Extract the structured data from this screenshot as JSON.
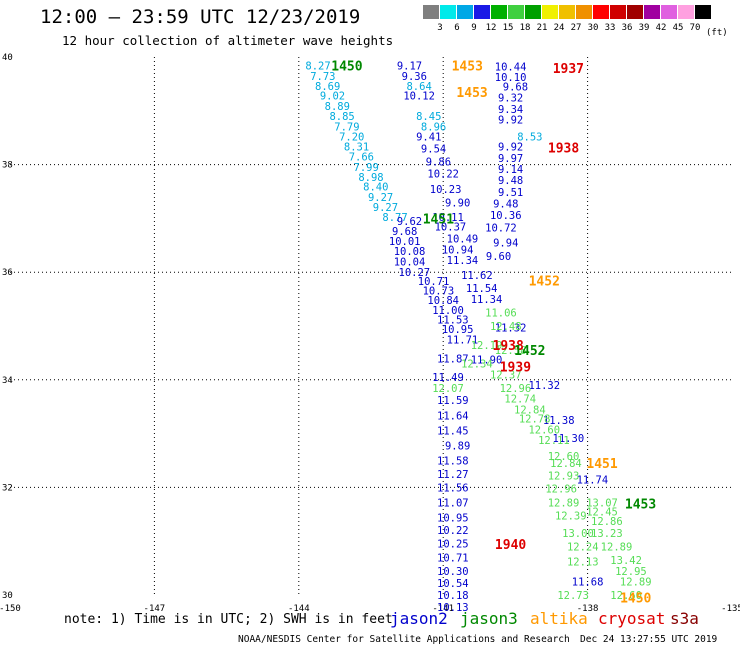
{
  "title": "12:00 — 23:59 UTC 12/23/2019",
  "subtitle": "12 hour collection of altimeter wave heights",
  "colorbar": {
    "colors": [
      "#7f7f7f",
      "#00eaea",
      "#00a8e6",
      "#1a1ae6",
      "#00b000",
      "#40d040",
      "#00a000",
      "#f0f000",
      "#f0c000",
      "#f09000",
      "#ff0000",
      "#d00000",
      "#a00000",
      "#a000a0",
      "#e060e0",
      "#ffa0e0",
      "#000000"
    ],
    "labels": [
      "3",
      "6",
      "9",
      "12",
      "15",
      "18",
      "21",
      "24",
      "27",
      "30",
      "33",
      "36",
      "39",
      "42",
      "45",
      "70"
    ],
    "unit": "(ft)"
  },
  "note": "note: 1) Time is in UTC; 2) SWH is in feet",
  "legend": [
    {
      "name": "jason2",
      "color": "#0000cc"
    },
    {
      "name": "jason3",
      "color": "#008800"
    },
    {
      "name": "altika",
      "color": "#ff9900"
    },
    {
      "name": "cryosat",
      "color": "#dd0000"
    },
    {
      "name": "s3a",
      "color": "#880000"
    }
  ],
  "footer_left": "NOAA/NESDIS Center for Satellite Applications and Research",
  "footer_right": "Dec 24 13:27:55 UTC 2019",
  "chart_data": {
    "type": "scatter",
    "xlim": [
      -150,
      -135
    ],
    "ylim": [
      30,
      40
    ],
    "xticks": [
      "-150",
      "-147",
      "-144",
      "-141",
      "-138",
      "-135"
    ],
    "yticks": [
      "40",
      "38",
      "36",
      "34",
      "32",
      "30"
    ],
    "xtick_values": [
      -150,
      -147,
      -144,
      -141,
      -138,
      -135
    ],
    "ytick_values": [
      40,
      38,
      36,
      34,
      32,
      30
    ],
    "grid": true,
    "series": [
      {
        "name": "s3a",
        "color": "#00aadd",
        "points": [
          {
            "x": -143.6,
            "y": 39.84,
            "v": "8.27"
          },
          {
            "x": -143.5,
            "y": 39.65,
            "v": "7.73"
          },
          {
            "x": -143.4,
            "y": 39.46,
            "v": "8.69"
          },
          {
            "x": -143.3,
            "y": 39.28,
            "v": "9.02"
          },
          {
            "x": -143.2,
            "y": 39.09,
            "v": "8.89"
          },
          {
            "x": -143.1,
            "y": 38.9,
            "v": "8.85"
          },
          {
            "x": -143.0,
            "y": 38.71,
            "v": "7.79"
          },
          {
            "x": -142.9,
            "y": 38.52,
            "v": "7.20"
          },
          {
            "x": -142.8,
            "y": 38.34,
            "v": "8.31"
          },
          {
            "x": -142.7,
            "y": 38.15,
            "v": "7.66"
          },
          {
            "x": -142.6,
            "y": 37.96,
            "v": "7.99"
          },
          {
            "x": -142.5,
            "y": 37.77,
            "v": "8.98"
          },
          {
            "x": -142.4,
            "y": 37.59,
            "v": "8.40"
          },
          {
            "x": -142.3,
            "y": 37.4,
            "v": "9.27"
          },
          {
            "x": -142.2,
            "y": 37.21,
            "v": "9.27"
          },
          {
            "x": -142.0,
            "y": 37.03,
            "v": "8.77"
          },
          {
            "x": -141.5,
            "y": 39.46,
            "v": "8.64"
          },
          {
            "x": -141.3,
            "y": 38.9,
            "v": "8.45"
          },
          {
            "x": -141.2,
            "y": 38.71,
            "v": "8.96"
          },
          {
            "x": -139.2,
            "y": 38.52,
            "v": "8.53"
          }
        ]
      },
      {
        "name": "jason2",
        "color": "#0000cc",
        "points": [
          {
            "x": -141.7,
            "y": 39.84,
            "v": "9.17"
          },
          {
            "x": -141.6,
            "y": 39.65,
            "v": "9.36"
          },
          {
            "x": -141.5,
            "y": 39.28,
            "v": "10.12"
          },
          {
            "x": -141.3,
            "y": 38.52,
            "v": "9.41"
          },
          {
            "x": -141.2,
            "y": 38.3,
            "v": "9.54"
          },
          {
            "x": -141.1,
            "y": 38.06,
            "v": "9.86"
          },
          {
            "x": -141.0,
            "y": 37.83,
            "v": "10.22"
          },
          {
            "x": -140.95,
            "y": 37.55,
            "v": "10.23"
          },
          {
            "x": -140.7,
            "y": 37.3,
            "v": "9.90"
          },
          {
            "x": -140.9,
            "y": 37.03,
            "v": "10.11"
          },
          {
            "x": -140.85,
            "y": 36.85,
            "v": "10.37"
          },
          {
            "x": -140.6,
            "y": 36.63,
            "v": "10.49"
          },
          {
            "x": -140.7,
            "y": 36.42,
            "v": "10.94"
          },
          {
            "x": -140.6,
            "y": 36.23,
            "v": "11.34"
          },
          {
            "x": -140.3,
            "y": 35.95,
            "v": "11.62"
          },
          {
            "x": -140.2,
            "y": 35.71,
            "v": "11.54"
          },
          {
            "x": -140.1,
            "y": 35.5,
            "v": "11.34"
          },
          {
            "x": -141.7,
            "y": 36.95,
            "v": "9.62"
          },
          {
            "x": -141.8,
            "y": 36.77,
            "v": "9.68"
          },
          {
            "x": -141.8,
            "y": 36.58,
            "v": "10.01"
          },
          {
            "x": -141.7,
            "y": 36.39,
            "v": "10.08"
          },
          {
            "x": -141.7,
            "y": 36.2,
            "v": "10.04"
          },
          {
            "x": -141.6,
            "y": 36.0,
            "v": "10.27"
          },
          {
            "x": -141.2,
            "y": 35.84,
            "v": "10.71"
          },
          {
            "x": -141.1,
            "y": 35.66,
            "v": "10.73"
          },
          {
            "x": -141.0,
            "y": 35.48,
            "v": "10.84"
          },
          {
            "x": -140.9,
            "y": 35.3,
            "v": "11.00"
          },
          {
            "x": -140.8,
            "y": 35.12,
            "v": "11.53"
          },
          {
            "x": -140.7,
            "y": 34.94,
            "v": "10.95"
          },
          {
            "x": -140.6,
            "y": 34.75,
            "v": "11.71"
          },
          {
            "x": -140.8,
            "y": 34.4,
            "v": "11.87"
          },
          {
            "x": -140.1,
            "y": 34.38,
            "v": "11.90"
          },
          {
            "x": -140.9,
            "y": 34.05,
            "v": "11.49"
          },
          {
            "x": -140.8,
            "y": 33.62,
            "v": "11.59"
          },
          {
            "x": -140.8,
            "y": 33.34,
            "v": "11.64"
          },
          {
            "x": -140.8,
            "y": 33.06,
            "v": "11.45"
          },
          {
            "x": -140.7,
            "y": 32.78,
            "v": "9.89"
          },
          {
            "x": -140.8,
            "y": 32.5,
            "v": "11.58"
          },
          {
            "x": -140.8,
            "y": 32.25,
            "v": "11.27"
          },
          {
            "x": -140.8,
            "y": 32.0,
            "v": "11.56"
          },
          {
            "x": -140.8,
            "y": 31.72,
            "v": "11.07"
          },
          {
            "x": -140.8,
            "y": 31.44,
            "v": "10.95"
          },
          {
            "x": -140.8,
            "y": 31.21,
            "v": "10.22"
          },
          {
            "x": -140.8,
            "y": 30.96,
            "v": "10.25"
          },
          {
            "x": -140.8,
            "y": 30.7,
            "v": "10.71"
          },
          {
            "x": -140.8,
            "y": 30.45,
            "v": "10.30"
          },
          {
            "x": -140.8,
            "y": 30.22,
            "v": "10.54"
          },
          {
            "x": -140.8,
            "y": 30.0,
            "v": "10.18"
          },
          {
            "x": -140.8,
            "y": 29.78,
            "v": "10.13"
          },
          {
            "x": -139.6,
            "y": 39.82,
            "v": "10.44"
          },
          {
            "x": -139.6,
            "y": 39.63,
            "v": "10.10"
          },
          {
            "x": -139.5,
            "y": 39.45,
            "v": "9.68"
          },
          {
            "x": -139.6,
            "y": 39.25,
            "v": "9.32"
          },
          {
            "x": -139.6,
            "y": 39.03,
            "v": "9.34"
          },
          {
            "x": -139.6,
            "y": 38.84,
            "v": "9.92"
          },
          {
            "x": -139.6,
            "y": 38.34,
            "v": "9.92"
          },
          {
            "x": -139.6,
            "y": 38.12,
            "v": "9.97"
          },
          {
            "x": -139.6,
            "y": 37.92,
            "v": "9.14"
          },
          {
            "x": -139.6,
            "y": 37.71,
            "v": "9.48"
          },
          {
            "x": -139.6,
            "y": 37.49,
            "v": "9.51"
          },
          {
            "x": -139.7,
            "y": 37.28,
            "v": "9.48"
          },
          {
            "x": -139.7,
            "y": 37.06,
            "v": "10.36"
          },
          {
            "x": -139.8,
            "y": 36.83,
            "v": "10.72"
          },
          {
            "x": -139.7,
            "y": 36.55,
            "v": "9.94"
          },
          {
            "x": -139.85,
            "y": 36.3,
            "v": "9.60"
          },
          {
            "x": -139.6,
            "y": 34.97,
            "v": "11.32"
          },
          {
            "x": -138.9,
            "y": 33.9,
            "v": "11.32"
          },
          {
            "x": -138.6,
            "y": 33.25,
            "v": "11.38"
          },
          {
            "x": -138.4,
            "y": 32.92,
            "v": "11.30"
          },
          {
            "x": -137.9,
            "y": 32.15,
            "v": "11.74"
          },
          {
            "x": -138.0,
            "y": 30.25,
            "v": "11.68"
          }
        ]
      },
      {
        "name": "jason3",
        "color": "#55dd55",
        "points": [
          {
            "x": -139.8,
            "y": 35.25,
            "v": "11.06"
          },
          {
            "x": -139.7,
            "y": 35.0,
            "v": "12.48"
          },
          {
            "x": -140.1,
            "y": 34.65,
            "v": "12.19"
          },
          {
            "x": -139.6,
            "y": 34.55,
            "v": "12.58"
          },
          {
            "x": -140.3,
            "y": 34.3,
            "v": "12.34"
          },
          {
            "x": -139.7,
            "y": 34.1,
            "v": "12.37"
          },
          {
            "x": -140.9,
            "y": 33.85,
            "v": "12.07"
          },
          {
            "x": -139.5,
            "y": 33.85,
            "v": "12.96"
          },
          {
            "x": -139.4,
            "y": 33.65,
            "v": "12.74"
          },
          {
            "x": -139.2,
            "y": 33.45,
            "v": "12.84"
          },
          {
            "x": -139.1,
            "y": 33.28,
            "v": "12.78"
          },
          {
            "x": -138.9,
            "y": 33.08,
            "v": "12.60"
          },
          {
            "x": -138.7,
            "y": 32.88,
            "v": "12.11"
          },
          {
            "x": -138.5,
            "y": 32.58,
            "v": "12.60"
          },
          {
            "x": -138.45,
            "y": 32.45,
            "v": "12.84"
          },
          {
            "x": -138.5,
            "y": 32.22,
            "v": "12.93"
          },
          {
            "x": -138.55,
            "y": 31.98,
            "v": "12.96"
          },
          {
            "x": -138.5,
            "y": 31.72,
            "v": "12.89"
          },
          {
            "x": -137.7,
            "y": 31.72,
            "v": "13.07"
          },
          {
            "x": -138.35,
            "y": 31.48,
            "v": "12.39"
          },
          {
            "x": -137.7,
            "y": 31.55,
            "v": "12.45"
          },
          {
            "x": -137.6,
            "y": 31.38,
            "v": "12.86"
          },
          {
            "x": -138.2,
            "y": 31.15,
            "v": "13.00"
          },
          {
            "x": -137.6,
            "y": 31.15,
            "v": "13.23"
          },
          {
            "x": -138.1,
            "y": 30.9,
            "v": "12.24"
          },
          {
            "x": -137.4,
            "y": 30.9,
            "v": "12.89"
          },
          {
            "x": -138.1,
            "y": 30.62,
            "v": "12.13"
          },
          {
            "x": -137.2,
            "y": 30.65,
            "v": "13.42"
          },
          {
            "x": -137.1,
            "y": 30.45,
            "v": "12.95"
          },
          {
            "x": -137.0,
            "y": 30.25,
            "v": "12.89"
          },
          {
            "x": -138.3,
            "y": 30.0,
            "v": "12.73"
          },
          {
            "x": -137.2,
            "y": 30.0,
            "v": "12.60"
          }
        ]
      }
    ],
    "labels": [
      {
        "x": -143.0,
        "y": 39.84,
        "text": "1450",
        "color": "#008800"
      },
      {
        "x": -140.5,
        "y": 39.84,
        "text": "1453",
        "color": "#ff9900"
      },
      {
        "x": -138.4,
        "y": 39.8,
        "text": "1937",
        "color": "#dd0000"
      },
      {
        "x": -140.4,
        "y": 39.35,
        "text": "1453",
        "color": "#ff9900"
      },
      {
        "x": -138.5,
        "y": 38.32,
        "text": "1938",
        "color": "#dd0000"
      },
      {
        "x": -141.1,
        "y": 37.0,
        "text": "1451",
        "color": "#008800"
      },
      {
        "x": -138.9,
        "y": 35.85,
        "text": "1452",
        "color": "#ff9900"
      },
      {
        "x": -139.65,
        "y": 34.65,
        "text": "1938",
        "color": "#dd0000"
      },
      {
        "x": -139.2,
        "y": 34.55,
        "text": "1452",
        "color": "#008800"
      },
      {
        "x": -139.5,
        "y": 34.25,
        "text": "1939",
        "color": "#dd0000"
      },
      {
        "x": -137.7,
        "y": 32.45,
        "text": "1451",
        "color": "#ff9900"
      },
      {
        "x": -136.9,
        "y": 31.7,
        "text": "1453",
        "color": "#008800"
      },
      {
        "x": -139.6,
        "y": 30.95,
        "text": "1940",
        "color": "#dd0000"
      },
      {
        "x": -137.0,
        "y": 29.95,
        "text": "1450",
        "color": "#ff9900"
      }
    ]
  }
}
